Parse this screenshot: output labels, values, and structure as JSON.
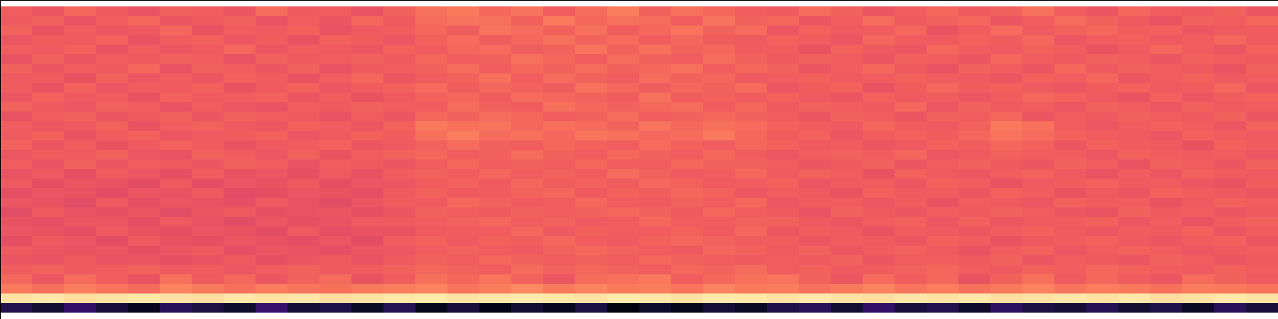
{
  "chart_data": {
    "type": "heatmap",
    "tick_labels": false,
    "color": "magma",
    "zlim": [
      0,
      100
    ],
    "cells": [
      [
        66,
        64,
        68,
        65,
        63,
        67,
        66,
        64,
        69,
        65,
        66,
        63,
        67,
        70,
        72,
        68,
        71,
        66,
        69,
        73,
        67,
        70,
        68,
        66,
        65,
        69,
        67,
        64,
        66,
        68,
        65,
        67,
        70,
        66,
        64,
        68,
        66,
        65,
        67,
        64
      ],
      [
        65,
        67,
        63,
        66,
        68,
        64,
        65,
        67,
        63,
        66,
        64,
        68,
        65,
        69,
        71,
        70,
        67,
        72,
        68,
        70,
        69,
        66,
        71,
        67,
        68,
        64,
        66,
        69,
        65,
        67,
        68,
        64,
        66,
        69,
        67,
        65,
        63,
        67,
        66,
        68
      ],
      [
        67,
        63,
        66,
        64,
        65,
        68,
        63,
        66,
        65,
        67,
        63,
        65,
        66,
        68,
        66,
        71,
        69,
        67,
        70,
        66,
        68,
        71,
        67,
        69,
        64,
        67,
        65,
        66,
        68,
        63,
        66,
        69,
        65,
        67,
        68,
        66,
        67,
        64,
        65,
        66
      ],
      [
        64,
        66,
        65,
        67,
        63,
        66,
        67,
        64,
        66,
        63,
        67,
        66,
        64,
        67,
        69,
        66,
        68,
        70,
        67,
        69,
        66,
        68,
        66,
        65,
        67,
        66,
        64,
        68,
        66,
        65,
        67,
        66,
        68,
        64,
        66,
        67,
        65,
        66,
        68,
        65
      ],
      [
        66,
        65,
        67,
        63,
        66,
        64,
        65,
        68,
        64,
        66,
        65,
        64,
        67,
        66,
        68,
        69,
        66,
        67,
        71,
        67,
        70,
        67,
        68,
        66,
        66,
        63,
        67,
        65,
        64,
        68,
        66,
        65,
        67,
        66,
        63,
        65,
        68,
        66,
        64,
        67
      ],
      [
        63,
        67,
        64,
        66,
        65,
        67,
        66,
        63,
        67,
        65,
        66,
        67,
        65,
        68,
        66,
        67,
        70,
        68,
        66,
        69,
        67,
        66,
        69,
        67,
        65,
        67,
        66,
        64,
        67,
        66,
        64,
        68,
        66,
        65,
        67,
        66,
        64,
        67,
        66,
        65
      ],
      [
        67,
        64,
        66,
        65,
        68,
        63,
        67,
        66,
        64,
        67,
        63,
        65,
        66,
        67,
        69,
        66,
        68,
        67,
        69,
        67,
        68,
        70,
        66,
        68,
        67,
        64,
        66,
        68,
        65,
        63,
        67,
        66,
        64,
        68,
        65,
        67,
        66,
        65,
        63,
        67
      ],
      [
        65,
        66,
        63,
        67,
        64,
        66,
        64,
        67,
        66,
        63,
        66,
        68,
        64,
        66,
        67,
        70,
        66,
        69,
        67,
        66,
        69,
        67,
        68,
        65,
        66,
        67,
        65,
        66,
        67,
        66,
        65,
        64,
        67,
        66,
        68,
        64,
        66,
        67,
        65,
        66
      ],
      [
        66,
        63,
        67,
        64,
        66,
        65,
        67,
        63,
        65,
        67,
        64,
        66,
        67,
        69,
        66,
        68,
        67,
        66,
        70,
        68,
        66,
        68,
        67,
        69,
        64,
        66,
        67,
        63,
        66,
        68,
        66,
        67,
        65,
        64,
        66,
        67,
        65,
        66,
        68,
        64
      ],
      [
        64,
        67,
        65,
        66,
        63,
        67,
        65,
        66,
        67,
        64,
        66,
        63,
        65,
        67,
        68,
        66,
        69,
        68,
        67,
        66,
        70,
        66,
        67,
        66,
        67,
        65,
        64,
        67,
        65,
        66,
        64,
        66,
        68,
        67,
        65,
        63,
        67,
        64,
        66,
        67
      ],
      [
        67,
        65,
        64,
        67,
        66,
        63,
        66,
        64,
        63,
        66,
        65,
        67,
        66,
        66,
        69,
        67,
        66,
        70,
        68,
        67,
        68,
        69,
        66,
        68,
        65,
        67,
        66,
        65,
        68,
        64,
        67,
        65,
        66,
        64,
        67,
        66,
        64,
        67,
        65,
        66
      ],
      [
        63,
        66,
        67,
        64,
        65,
        67,
        64,
        67,
        66,
        65,
        63,
        66,
        64,
        68,
        67,
        69,
        68,
        66,
        67,
        69,
        66,
        67,
        68,
        67,
        66,
        64,
        67,
        66,
        64,
        67,
        66,
        68,
        64,
        66,
        65,
        67,
        66,
        65,
        67,
        64
      ],
      [
        66,
        64,
        65,
        67,
        63,
        66,
        67,
        65,
        64,
        67,
        66,
        64,
        67,
        72,
        70,
        71,
        68,
        70,
        69,
        67,
        71,
        68,
        70,
        69,
        67,
        66,
        65,
        68,
        66,
        65,
        67,
        72,
        70,
        66,
        64,
        66,
        67,
        66,
        64,
        67
      ],
      [
        65,
        67,
        63,
        66,
        67,
        64,
        65,
        66,
        67,
        64,
        65,
        67,
        66,
        70,
        73,
        69,
        70,
        68,
        71,
        70,
        68,
        69,
        72,
        68,
        66,
        67,
        64,
        66,
        67,
        66,
        68,
        71,
        69,
        67,
        66,
        65,
        64,
        67,
        66,
        65
      ],
      [
        67,
        64,
        66,
        63,
        65,
        67,
        66,
        63,
        65,
        66,
        67,
        64,
        65,
        67,
        69,
        67,
        66,
        68,
        67,
        66,
        69,
        67,
        66,
        68,
        67,
        65,
        66,
        64,
        65,
        67,
        66,
        68,
        67,
        64,
        67,
        66,
        65,
        63,
        67,
        66
      ],
      [
        64,
        66,
        65,
        67,
        64,
        63,
        67,
        66,
        64,
        67,
        63,
        66,
        67,
        68,
        66,
        67,
        69,
        67,
        66,
        68,
        67,
        66,
        68,
        66,
        64,
        66,
        67,
        66,
        68,
        64,
        65,
        67,
        66,
        66,
        64,
        67,
        66,
        65,
        66,
        64
      ],
      [
        66,
        63,
        67,
        64,
        66,
        65,
        64,
        67,
        66,
        63,
        66,
        65,
        64,
        66,
        68,
        66,
        67,
        66,
        68,
        66,
        66,
        68,
        67,
        67,
        66,
        64,
        65,
        67,
        64,
        66,
        67,
        65,
        64,
        67,
        66,
        63,
        67,
        66,
        64,
        67
      ],
      [
        63,
        65,
        62,
        66,
        64,
        62,
        66,
        63,
        64,
        62,
        65,
        63,
        66,
        67,
        66,
        68,
        66,
        67,
        66,
        69,
        67,
        65,
        66,
        68,
        65,
        67,
        66,
        63,
        67,
        65,
        64,
        66,
        67,
        65,
        63,
        66,
        64,
        67,
        66,
        65
      ],
      [
        65,
        62,
        64,
        63,
        61,
        65,
        62,
        64,
        63,
        65,
        62,
        64,
        64,
        66,
        67,
        65,
        68,
        66,
        67,
        66,
        68,
        67,
        65,
        66,
        67,
        64,
        65,
        66,
        64,
        67,
        66,
        63,
        65,
        66,
        67,
        65,
        66,
        64,
        63,
        66
      ],
      [
        62,
        64,
        63,
        61,
        64,
        63,
        65,
        61,
        62,
        64,
        63,
        62,
        65,
        67,
        65,
        66,
        67,
        68,
        65,
        67,
        66,
        68,
        67,
        64,
        66,
        65,
        63,
        67,
        65,
        66,
        64,
        67,
        66,
        63,
        65,
        64,
        67,
        66,
        65,
        64
      ],
      [
        64,
        63,
        61,
        65,
        62,
        64,
        63,
        62,
        65,
        63,
        61,
        64,
        66,
        65,
        68,
        67,
        65,
        66,
        68,
        66,
        65,
        67,
        66,
        68,
        64,
        66,
        66,
        64,
        66,
        63,
        66,
        65,
        64,
        67,
        66,
        66,
        63,
        65,
        67,
        66
      ],
      [
        61,
        65,
        63,
        62,
        64,
        61,
        64,
        65,
        62,
        63,
        64,
        62,
        64,
        67,
        66,
        65,
        67,
        66,
        67,
        68,
        67,
        65,
        68,
        66,
        65,
        63,
        67,
        65,
        64,
        66,
        65,
        67,
        66,
        64,
        63,
        67,
        65,
        66,
        64,
        65
      ],
      [
        63,
        62,
        64,
        64,
        62,
        65,
        63,
        61,
        64,
        62,
        63,
        65,
        65,
        66,
        67,
        68,
        66,
        67,
        65,
        66,
        68,
        66,
        66,
        67,
        67,
        65,
        64,
        66,
        67,
        64,
        67,
        64,
        65,
        66,
        67,
        64,
        66,
        63,
        66,
        67
      ],
      [
        64,
        63,
        62,
        65,
        63,
        62,
        64,
        63,
        61,
        65,
        62,
        63,
        63,
        65,
        66,
        66,
        68,
        65,
        67,
        66,
        66,
        67,
        65,
        68,
        64,
        66,
        65,
        63,
        66,
        65,
        64,
        66,
        67,
        65,
        64,
        66,
        65,
        67,
        64,
        66
      ],
      [
        62,
        65,
        64,
        61,
        65,
        63,
        62,
        64,
        63,
        62,
        64,
        61,
        66,
        67,
        65,
        67,
        66,
        68,
        66,
        65,
        67,
        68,
        67,
        66,
        66,
        64,
        66,
        65,
        64,
        67,
        66,
        63,
        65,
        66,
        67,
        65,
        64,
        66,
        67,
        64
      ],
      [
        65,
        64,
        63,
        64,
        62,
        64,
        65,
        62,
        64,
        63,
        62,
        64,
        64,
        66,
        67,
        66,
        65,
        67,
        68,
        67,
        66,
        65,
        68,
        67,
        65,
        67,
        64,
        66,
        67,
        65,
        63,
        66,
        67,
        64,
        66,
        67,
        66,
        64,
        65,
        66
      ],
      [
        64,
        63,
        65,
        63,
        64,
        62,
        63,
        65,
        62,
        64,
        65,
        63,
        65,
        67,
        66,
        68,
        67,
        66,
        67,
        66,
        68,
        67,
        66,
        65,
        66,
        65,
        67,
        64,
        66,
        66,
        65,
        67,
        64,
        66,
        65,
        64,
        67,
        66,
        64,
        65
      ],
      [
        66,
        67,
        65,
        66,
        67,
        65,
        66,
        64,
        66,
        67,
        65,
        66,
        67,
        68,
        67,
        66,
        69,
        67,
        68,
        67,
        66,
        68,
        67,
        69,
        66,
        67,
        65,
        66,
        67,
        68,
        66,
        65,
        67,
        66,
        68,
        67,
        66,
        65,
        67,
        66
      ],
      [
        68,
        64,
        69,
        66,
        63,
        70,
        65,
        68,
        64,
        67,
        69,
        63,
        66,
        70,
        68,
        71,
        67,
        64,
        69,
        70,
        72,
        66,
        68,
        70,
        71,
        67,
        64,
        69,
        66,
        68,
        63,
        67,
        70,
        65,
        68,
        66,
        64,
        69,
        67,
        65
      ],
      [
        72,
        70,
        73,
        71,
        69,
        74,
        72,
        70,
        73,
        71,
        70,
        72,
        73,
        74,
        71,
        73,
        75,
        72,
        74,
        72,
        73,
        71,
        74,
        72,
        73,
        70,
        72,
        74,
        71,
        73,
        70,
        72,
        74,
        71,
        73,
        72,
        70,
        73,
        72,
        71
      ],
      [
        94,
        95,
        93,
        94,
        95,
        94,
        93,
        95,
        94,
        95,
        93,
        94,
        95,
        96,
        94,
        95,
        96,
        95,
        94,
        96,
        95,
        94,
        96,
        95,
        94,
        95,
        94,
        93,
        95,
        94,
        95,
        93,
        94,
        95,
        94,
        95,
        93,
        94,
        95,
        94
      ],
      [
        14,
        9,
        18,
        11,
        6,
        16,
        12,
        8,
        19,
        10,
        13,
        7,
        15,
        5,
        11,
        4,
        9,
        6,
        12,
        3,
        8,
        5,
        10,
        7,
        13,
        16,
        9,
        18,
        11,
        14,
        8,
        17,
        12,
        10,
        15,
        9,
        13,
        7,
        16,
        11
      ]
    ]
  }
}
